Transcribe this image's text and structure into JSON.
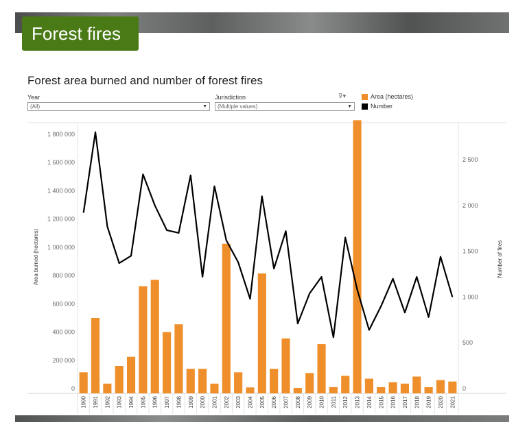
{
  "header": {
    "title": "Forest fires"
  },
  "filters": {
    "year_label": "Year",
    "year_value": "(All)",
    "jurisdiction_label": "Jurisdiction",
    "jurisdiction_value": "(Multiple values)"
  },
  "colors": {
    "area": "#ef8f2b",
    "number": "#000000"
  },
  "chart_data": {
    "type": "bar",
    "title": "Forest area burned and number of forest fires",
    "xlabel": "",
    "ylabel": "Area burned (hectares)",
    "ylabel_right": "Number of fires",
    "categories": [
      "1990",
      "1991",
      "1992",
      "1993",
      "1994",
      "1995",
      "1996",
      "1997",
      "1998",
      "1999",
      "2000",
      "2001",
      "2002",
      "2003",
      "2004",
      "2005",
      "2006",
      "2007",
      "2008",
      "2009",
      "2010",
      "2011",
      "2012",
      "2013",
      "2014",
      "2015",
      "2016",
      "2017",
      "2018",
      "2019",
      "2020",
      "2021"
    ],
    "series": [
      {
        "name": "Area (hectares)",
        "type": "bar",
        "axis": "left",
        "values": [
          115000,
          500000,
          35000,
          160000,
          225000,
          725000,
          770000,
          400000,
          455000,
          140000,
          140000,
          35000,
          1025000,
          115000,
          8000,
          815000,
          140000,
          355000,
          5000,
          110000,
          315000,
          10000,
          90000,
          1900000,
          70000,
          10000,
          45000,
          35000,
          85000,
          10000,
          60000,
          50000
        ]
      },
      {
        "name": "Number",
        "type": "line",
        "axis": "right",
        "values": [
          1920,
          2800,
          1770,
          1370,
          1450,
          2340,
          2000,
          1730,
          1700,
          2330,
          1220,
          2210,
          1620,
          1380,
          980,
          2100,
          1310,
          1720,
          710,
          1040,
          1220,
          560,
          1650,
          1080,
          640,
          900,
          1200,
          830,
          1220,
          780,
          1440,
          1000
        ]
      }
    ],
    "ylim": [
      0,
      2000000
    ],
    "ylim_right": [
      0,
      2900
    ],
    "yticks": [
      "0",
      "200 000",
      "400 000",
      "600 000",
      "800 000",
      "1 000 000",
      "1 200 000",
      "1 400 000",
      "1 600 000",
      "1 800 000"
    ],
    "yticks_right": [
      "0",
      "500",
      "1 000",
      "1 500",
      "2 000",
      "2 500"
    ],
    "legend": [
      {
        "label": "Area (hectares)",
        "color": "#ef8f2b"
      },
      {
        "label": "Number",
        "color": "#000000"
      }
    ],
    "legend_position": "top-right",
    "grid": false
  }
}
